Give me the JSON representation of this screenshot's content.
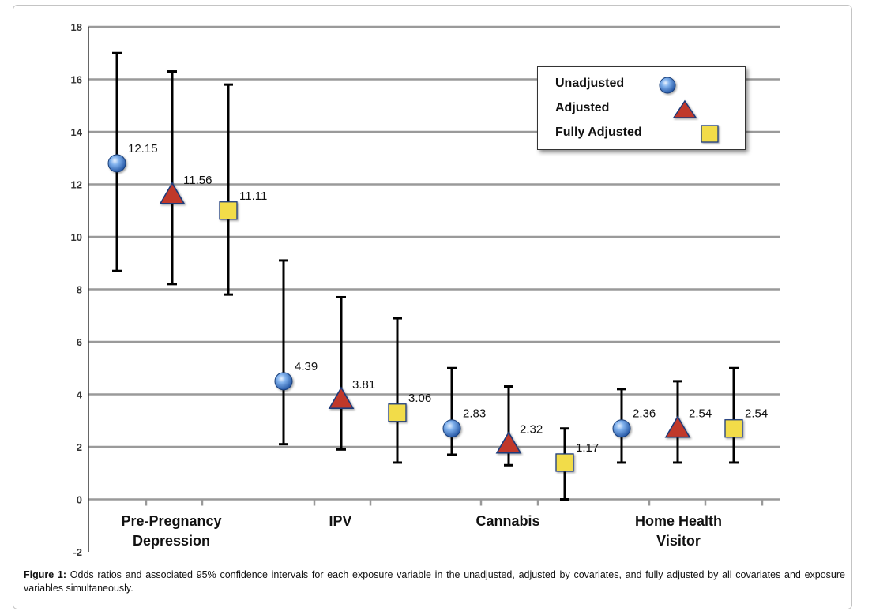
{
  "chart_data": {
    "type": "scatter",
    "subtype": "odds-ratio-with-confidence-intervals",
    "categories": [
      "Pre-Pregnancy Depression",
      "IPV",
      "Cannabis",
      "Home Health Visitor"
    ],
    "category_label_lines": [
      [
        "Pre-Pregnancy",
        "Depression"
      ],
      [
        "IPV"
      ],
      [
        "Cannabis"
      ],
      [
        "Home Health",
        "Visitor"
      ]
    ],
    "ylim": [
      -2,
      18
    ],
    "yticks": [
      "-2",
      "0",
      "2",
      "4",
      "6",
      "8",
      "10",
      "12",
      "14",
      "16",
      "18"
    ],
    "grid": true,
    "legend_position": "top-right",
    "series": [
      {
        "name": "Unadjusted",
        "marker": "circle",
        "color": "#3a78c9",
        "values": [
          12.15,
          4.39,
          2.83,
          2.36
        ],
        "plotted": [
          12.8,
          4.5,
          2.7,
          2.7
        ],
        "lower": [
          8.7,
          2.1,
          1.7,
          1.4
        ],
        "upper": [
          17.0,
          9.1,
          5.0,
          4.2
        ]
      },
      {
        "name": "Adjusted",
        "marker": "triangle",
        "color": "#c0392b",
        "values": [
          11.56,
          3.81,
          2.32,
          2.54
        ],
        "plotted": [
          11.6,
          3.8,
          2.1,
          2.7
        ],
        "lower": [
          8.2,
          1.9,
          1.3,
          1.4
        ],
        "upper": [
          16.3,
          7.7,
          4.3,
          4.5
        ]
      },
      {
        "name": "Fully Adjusted",
        "marker": "square",
        "color": "#f2dc4a",
        "values": [
          11.11,
          3.06,
          1.17,
          2.54
        ],
        "plotted": [
          11.0,
          3.3,
          1.4,
          2.7
        ],
        "lower": [
          7.8,
          1.4,
          0.0,
          1.4
        ],
        "upper": [
          15.8,
          6.9,
          2.7,
          5.0
        ]
      }
    ],
    "data_labels": [
      [
        "12.15",
        "4.39",
        "2.83",
        "2.36"
      ],
      [
        "11.56",
        "3.81",
        "2.32",
        "2.54"
      ],
      [
        "11.11",
        "3.06",
        "1.17",
        "2.54"
      ]
    ]
  },
  "legend": {
    "entries": [
      "Unadjusted",
      "Adjusted",
      "Fully Adjusted"
    ]
  },
  "caption": {
    "prefix": "Figure 1:",
    "text": " Odds ratios and associated 95% confidence intervals for each exposure variable in the unadjusted, adjusted by covariates, and fully adjusted by all covariates and exposure variables simultaneously."
  }
}
